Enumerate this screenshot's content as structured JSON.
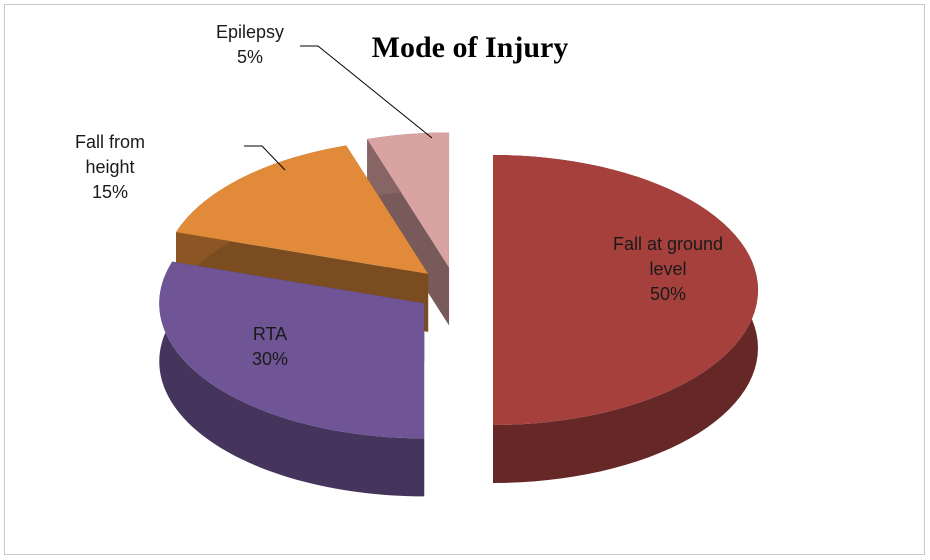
{
  "chart_data": {
    "type": "pie",
    "title": "Mode of Injury",
    "categories": [
      "Fall at ground level",
      "RTA",
      "Fall from height",
      "Epilepsy"
    ],
    "values": [
      50,
      30,
      15,
      5
    ],
    "value_labels": [
      "50%",
      "30%",
      "15%",
      "5%"
    ],
    "colors": [
      "#a5403d",
      "#6f5596",
      "#e08a3a",
      "#d9a3a2"
    ]
  }
}
